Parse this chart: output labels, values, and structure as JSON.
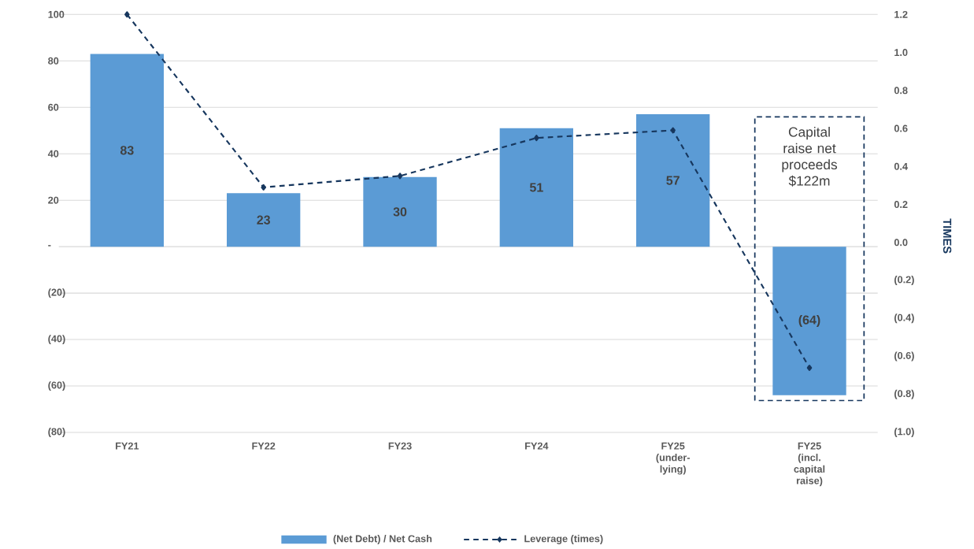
{
  "chart_data": {
    "type": "bar",
    "categories": [
      "FY21",
      "FY22",
      "FY23",
      "FY24",
      "FY25 (under-lying)",
      "FY25 (incl. capital raise)"
    ],
    "series": [
      {
        "name": "(Net Debt) / Net Cash",
        "color": "#5b9bd5",
        "values": [
          83,
          23,
          30,
          51,
          57,
          -64
        ],
        "value_labels": [
          "83",
          "23",
          "30",
          "51",
          "57",
          "(64)"
        ]
      },
      {
        "name": "Leverage (times)",
        "type": "line",
        "axis": "y2",
        "color": "#17375e",
        "marker": "diamond",
        "line_style": "dashed",
        "values": [
          1.2,
          0.29,
          0.35,
          0.55,
          0.59,
          -0.66
        ]
      }
    ],
    "ylim": [
      -80,
      100
    ],
    "yticks": [
      {
        "value": -80,
        "label": "(80)"
      },
      {
        "value": -60,
        "label": "(60)"
      },
      {
        "value": -40,
        "label": "(40)"
      },
      {
        "value": -20,
        "label": "(20)"
      },
      {
        "value": 0,
        "label": "-"
      },
      20,
      40,
      60,
      80,
      100
    ],
    "y2label": "TIMES",
    "y2lim": [
      -1.0,
      1.2
    ],
    "y2ticks": [
      {
        "value": -1.0,
        "label": "(1.0)"
      },
      {
        "value": -0.8,
        "label": "(0.8)"
      },
      {
        "value": -0.6,
        "label": "(0.6)"
      },
      {
        "value": -0.4,
        "label": "(0.4)"
      },
      {
        "value": -0.2,
        "label": "(0.2)"
      },
      {
        "value": 0,
        "label": "0.0"
      },
      0.2,
      0.4,
      0.6,
      0.8,
      {
        "value": 1.0,
        "label": "1.0"
      },
      1.2
    ],
    "annotations": [
      "Capital raise net proceeds $122m"
    ],
    "grid": "y",
    "legend": "bottom"
  }
}
